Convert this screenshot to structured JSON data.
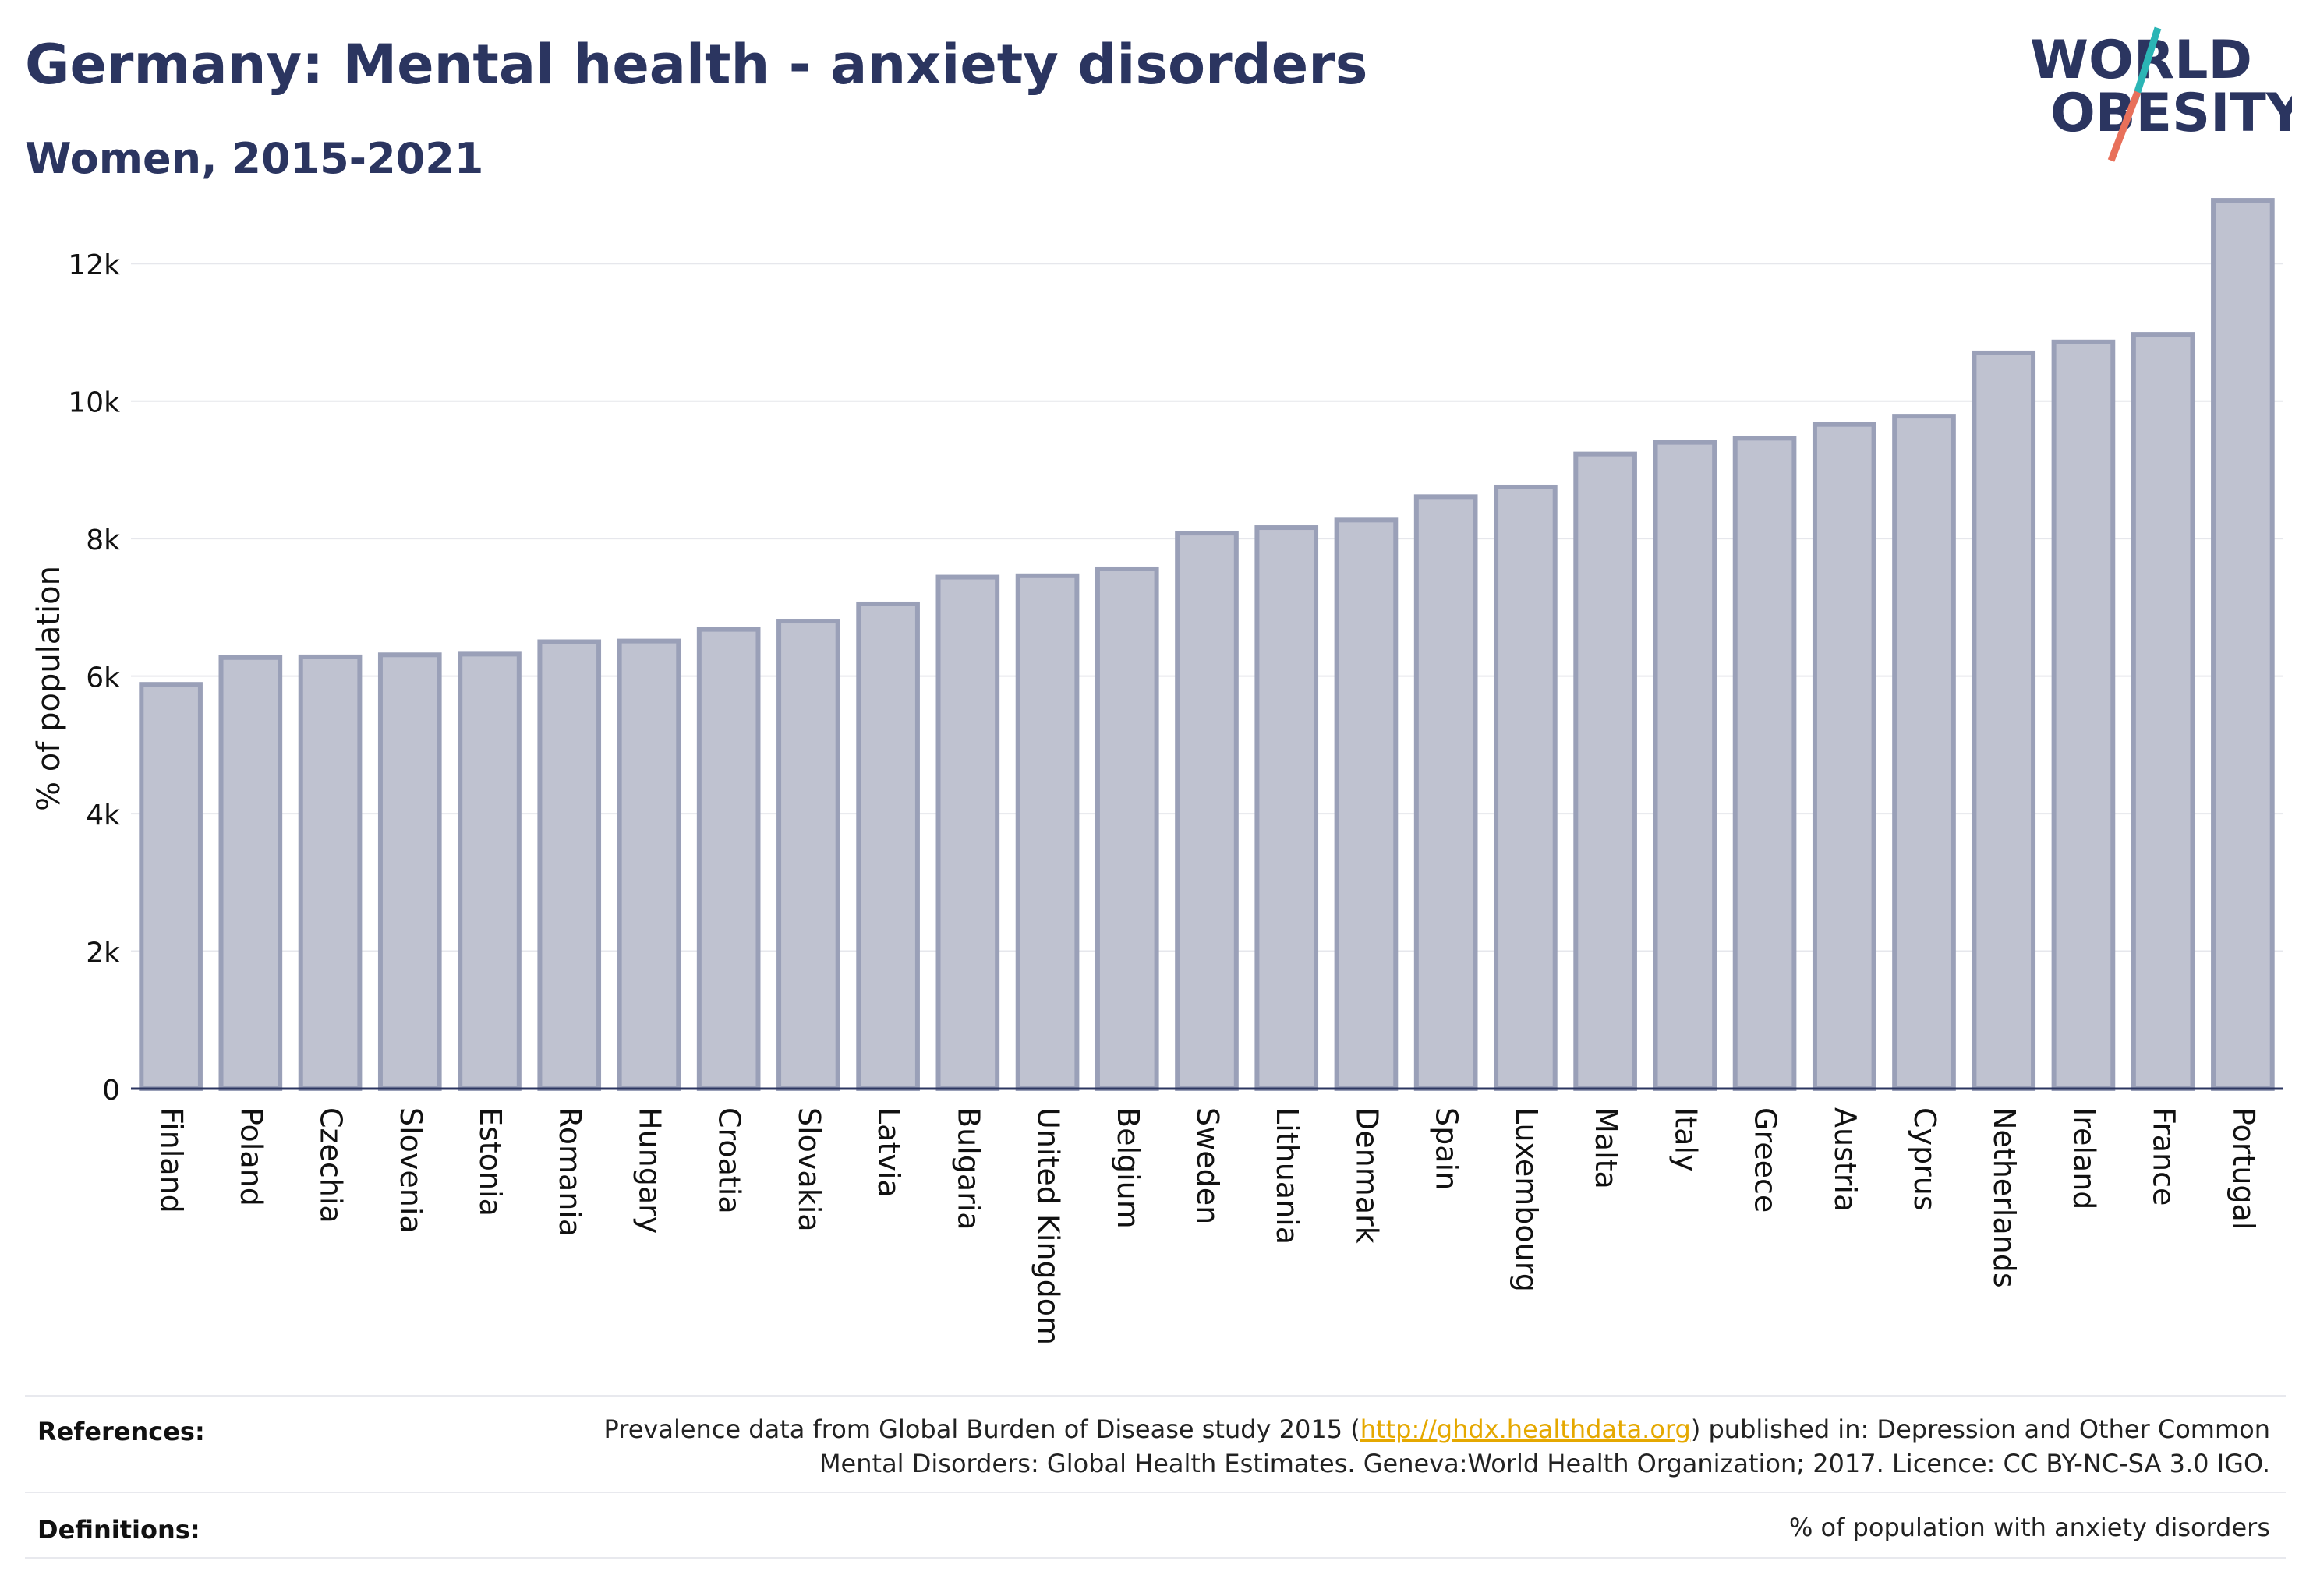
{
  "header": {
    "title": "Germany: Mental health - anxiety disorders",
    "subtitle": "Women, 2015-2021"
  },
  "logo": {
    "line1": "WORLD",
    "line2": "OBESITY",
    "accent_colors": [
      "#2bb5b5",
      "#e8705a"
    ],
    "text_color": "#2b3560"
  },
  "chart_data": {
    "type": "bar",
    "title": "Germany: Mental health - anxiety disorders",
    "subtitle": "Women, 2015-2021",
    "xlabel": "",
    "ylabel": "% of population",
    "ylim": [
      0,
      13000
    ],
    "yticks": [
      0,
      2000,
      4000,
      6000,
      8000,
      10000,
      12000
    ],
    "ytick_labels": [
      "0",
      "2k",
      "4k",
      "6k",
      "8k",
      "10k",
      "12k"
    ],
    "grid": true,
    "bar_fill": "#bfc2d0",
    "bar_stroke": "#9aa0b8",
    "categories": [
      "Finland",
      "Poland",
      "Czechia",
      "Slovenia",
      "Estonia",
      "Romania",
      "Hungary",
      "Croatia",
      "Slovakia",
      "Latvia",
      "Bulgaria",
      "United Kingdom",
      "Belgium",
      "Sweden",
      "Lithuania",
      "Denmark",
      "Spain",
      "Luxembourg",
      "Malta",
      "Italy",
      "Greece",
      "Austria",
      "Cyprus",
      "Netherlands",
      "Ireland",
      "France",
      "Portugal"
    ],
    "values": [
      5880,
      6270,
      6280,
      6310,
      6320,
      6500,
      6510,
      6680,
      6800,
      7050,
      7440,
      7460,
      7560,
      8080,
      8160,
      8270,
      8610,
      8750,
      9230,
      9400,
      9460,
      9660,
      9780,
      10700,
      10860,
      10970,
      12920
    ]
  },
  "footer": {
    "references_label": "References:",
    "references_pre": "Prevalence data from Global Burden of Disease study 2015 (",
    "references_link": "http://ghdx.healthdata.org",
    "references_post": ") published in: Depression and Other Common",
    "references_line2": "Mental Disorders: Global Health Estimates. Geneva:World Health Organization; 2017. Licence: CC BY-NC-SA 3.0 IGO.",
    "definitions_label": "Definitions:",
    "definitions_text": "% of population with anxiety disorders"
  }
}
